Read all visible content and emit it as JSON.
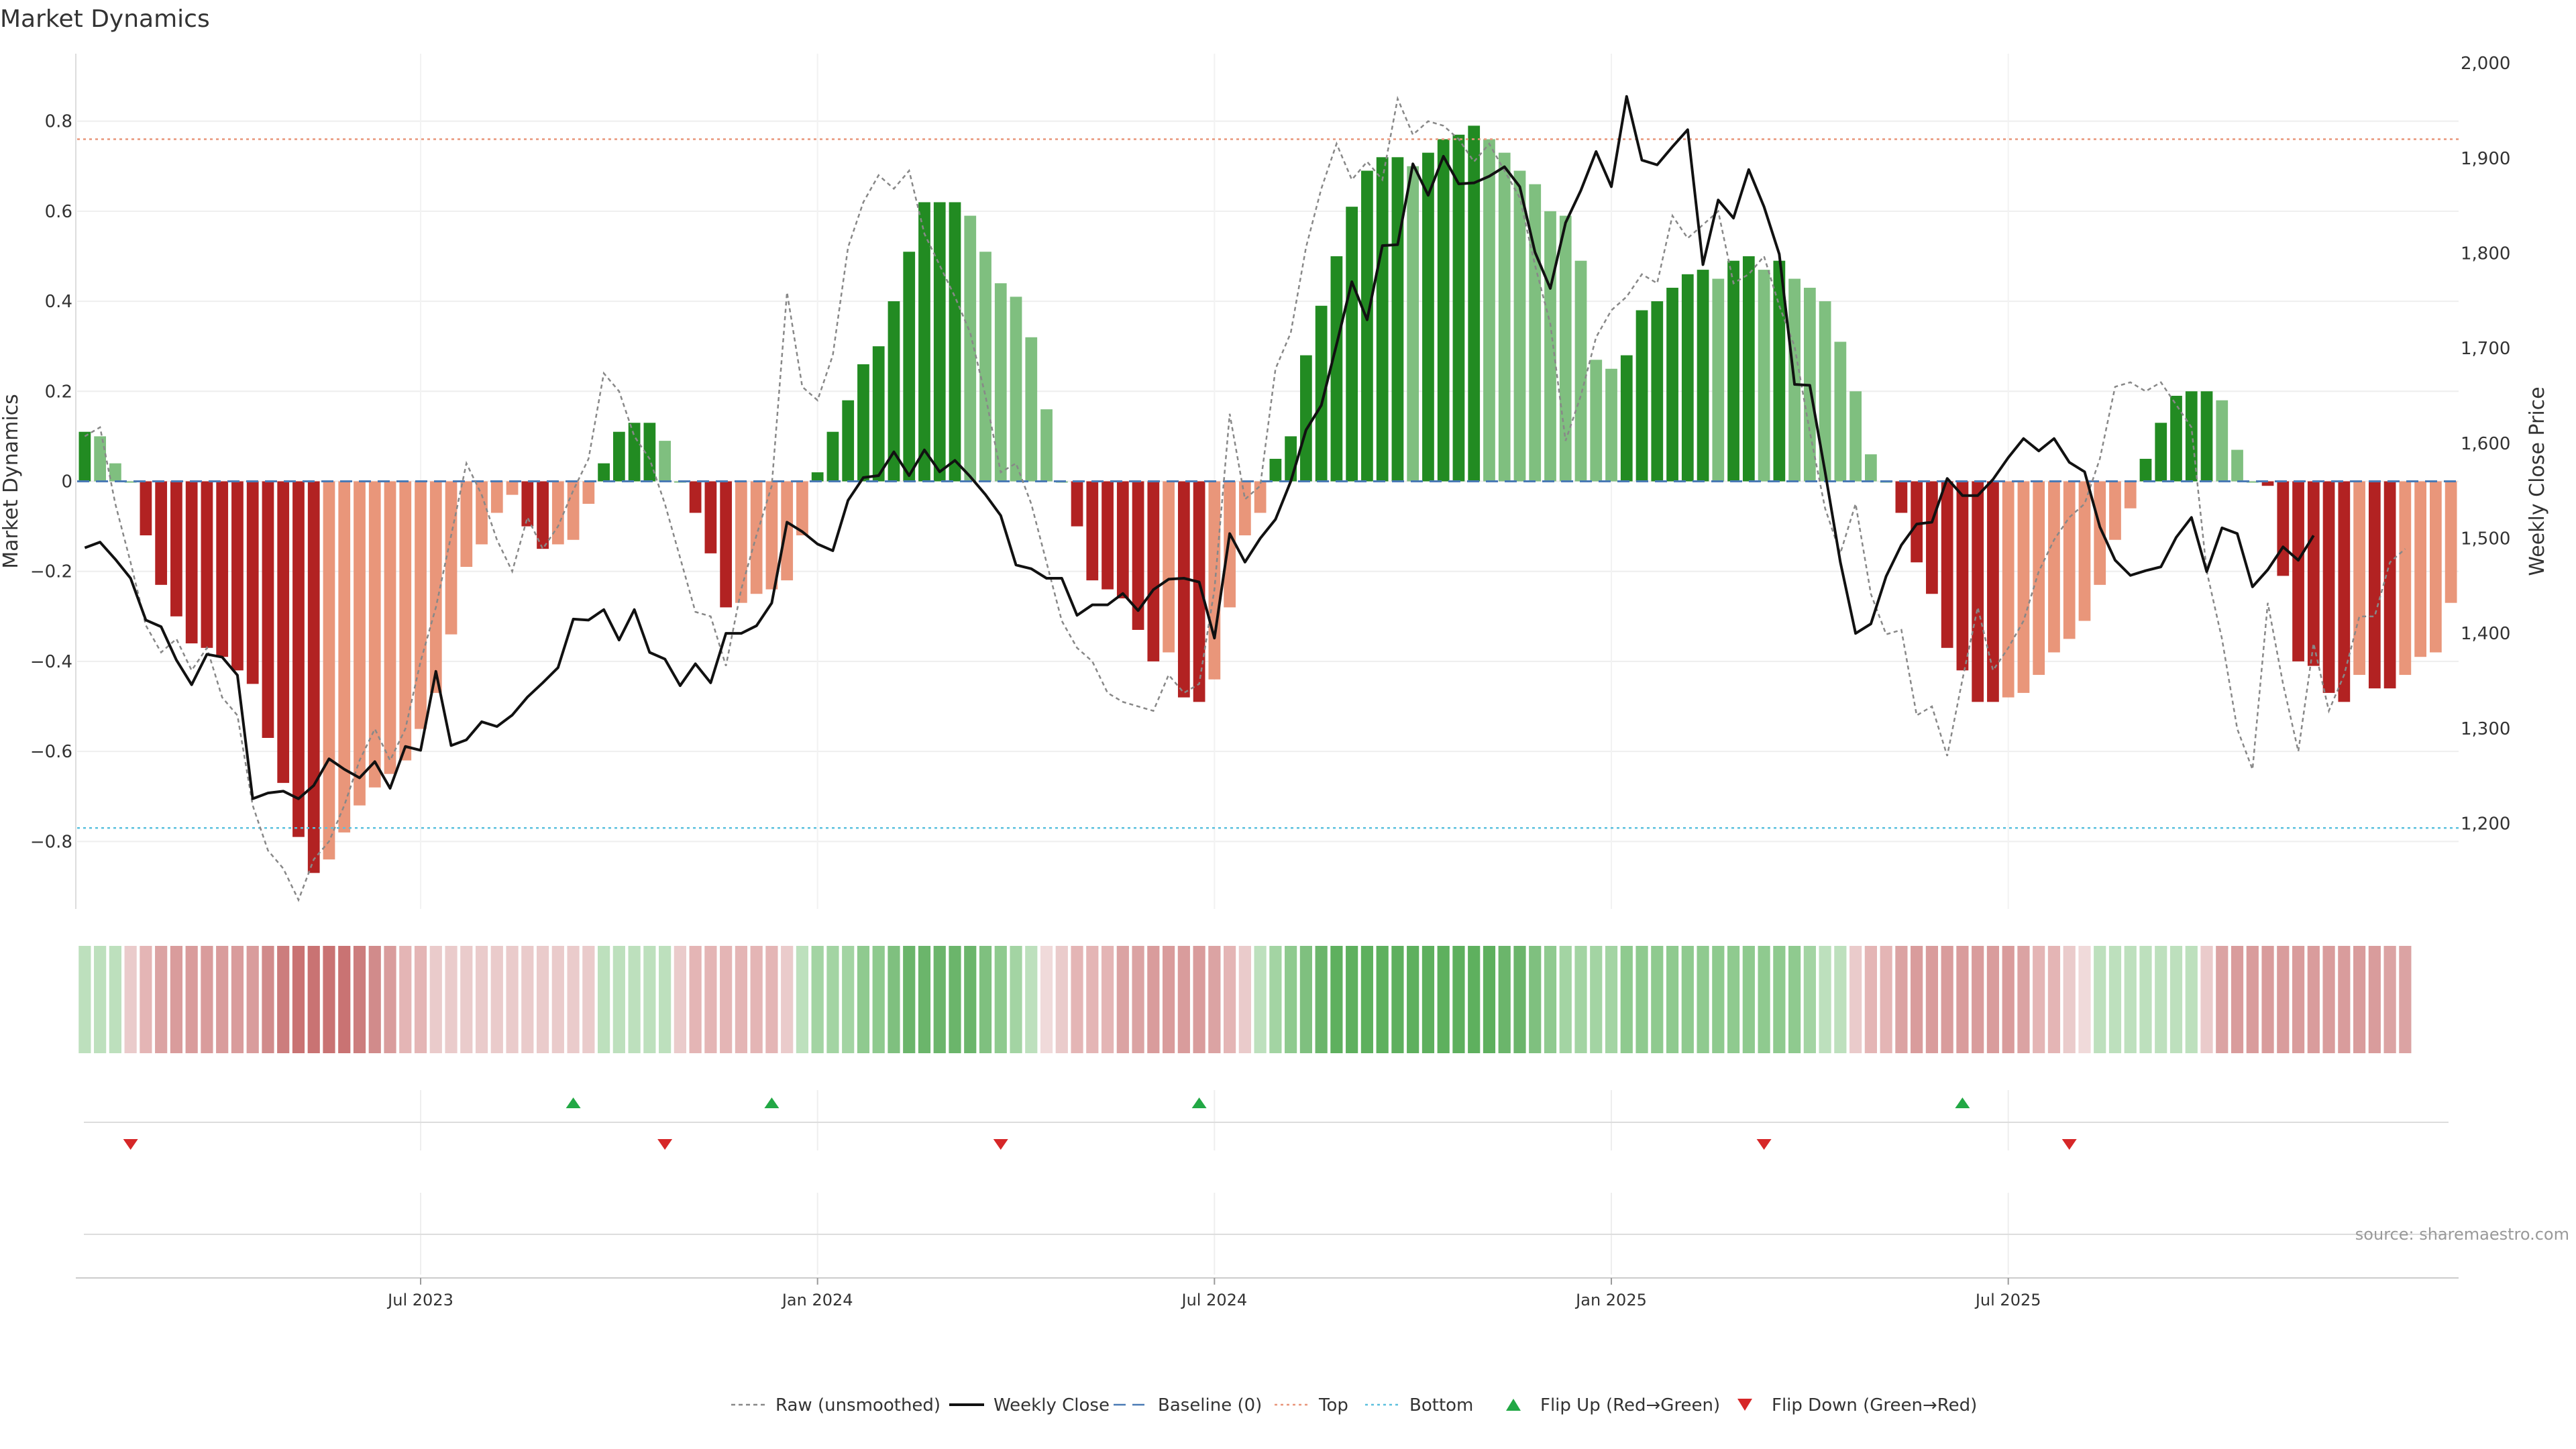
{
  "chart_data": {
    "type": "bar",
    "title": "Market Dynamics",
    "ylabel": "Market Dynamics",
    "y2label": "Weekly Close Price",
    "ylim": [
      -0.95,
      0.95
    ],
    "y2lim": [
      1110,
      2010
    ],
    "y_ticks": [
      -0.8,
      -0.6,
      -0.4,
      -0.2,
      0,
      0.2,
      0.4,
      0.6,
      0.8
    ],
    "y_tick_labels": [
      "−0.8",
      "−0.6",
      "−0.4",
      "−0.2",
      "0",
      "0.2",
      "0.4",
      "0.6",
      "0.8"
    ],
    "y2_ticks": [
      1200,
      1300,
      1400,
      1500,
      1600,
      1700,
      1800,
      1900,
      2000
    ],
    "y2_tick_labels": [
      "1,200",
      "1,300",
      "1,400",
      "1,500",
      "1,600",
      "1,700",
      "1,800",
      "1,900",
      "2,000"
    ],
    "x_ticks": [
      {
        "week": 22,
        "label": "Jul 2023"
      },
      {
        "week": 48,
        "label": "Jan 2024"
      },
      {
        "week": 74,
        "label": "Jul 2024"
      },
      {
        "week": 100,
        "label": "Jan 2025"
      },
      {
        "week": 126,
        "label": "Jul 2025"
      }
    ],
    "top_line": 0.76,
    "bottom_line": -0.77,
    "baseline": 0,
    "source_text": "source: sharemaestro.com",
    "colors": {
      "strong_up": "#228b22",
      "weak_up": "#7fbf7f",
      "strong_down": "#b22222",
      "weak_down": "#e9967a",
      "close": "#111111",
      "raw": "#888888",
      "top": "#e9967a",
      "bottom": "#5bc0de",
      "baseline": "#4a7ab5",
      "flip_up": "#22a845",
      "flip_down": "#d62728"
    },
    "momentum": [
      0.11,
      0.1,
      0.04,
      0,
      -0.12,
      -0.23,
      -0.3,
      -0.36,
      -0.37,
      -0.39,
      -0.42,
      -0.45,
      -0.57,
      -0.67,
      -0.79,
      -0.87,
      -0.84,
      -0.78,
      -0.72,
      -0.68,
      -0.65,
      -0.62,
      -0.55,
      -0.47,
      -0.34,
      -0.19,
      -0.14,
      -0.07,
      -0.03,
      -0.1,
      -0.15,
      -0.14,
      -0.13,
      -0.05,
      0.04,
      0.11,
      0.13,
      0.13,
      0.09,
      0,
      -0.07,
      -0.16,
      -0.28,
      -0.27,
      -0.25,
      -0.24,
      -0.22,
      -0.12,
      0.02,
      0.11,
      0.18,
      0.26,
      0.3,
      0.4,
      0.51,
      0.62,
      0.62,
      0.62,
      0.59,
      0.51,
      0.44,
      0.41,
      0.32,
      0.16,
      0,
      -0.1,
      -0.22,
      -0.24,
      -0.26,
      -0.33,
      -0.4,
      -0.38,
      -0.48,
      -0.49,
      -0.44,
      -0.28,
      -0.12,
      -0.07,
      0.05,
      0.1,
      0.28,
      0.39,
      0.5,
      0.61,
      0.69,
      0.72,
      0.72,
      0.7,
      0.73,
      0.76,
      0.77,
      0.79,
      0.76,
      0.73,
      0.69,
      0.66,
      0.6,
      0.59,
      0.49,
      0.27,
      0.25,
      0.28,
      0.38,
      0.4,
      0.43,
      0.46,
      0.47,
      0.45,
      0.49,
      0.5,
      0.47,
      0.49,
      0.45,
      0.43,
      0.4,
      0.31,
      0.2,
      0.06,
      0,
      -0.07,
      -0.18,
      -0.25,
      -0.37,
      -0.42,
      -0.49,
      -0.49,
      -0.48,
      -0.47,
      -0.43,
      -0.38,
      -0.35,
      -0.31,
      -0.23,
      -0.13,
      -0.06,
      0.05,
      0.13,
      0.19,
      0.2,
      0.2,
      0.18,
      0.07,
      0,
      -0.01,
      -0.21,
      -0.4,
      -0.41,
      -0.47,
      -0.49,
      -0.43,
      -0.46,
      -0.46,
      -0.43,
      -0.39,
      -0.38,
      -0.27
    ],
    "raw": [
      0.1,
      0.12,
      -0.05,
      -0.18,
      -0.32,
      -0.38,
      -0.35,
      -0.42,
      -0.37,
      -0.48,
      -0.52,
      -0.72,
      -0.82,
      -0.86,
      -0.93,
      -0.84,
      -0.8,
      -0.72,
      -0.62,
      -0.55,
      -0.62,
      -0.55,
      -0.4,
      -0.28,
      -0.12,
      0.04,
      -0.03,
      -0.13,
      -0.2,
      -0.08,
      -0.15,
      -0.1,
      -0.02,
      0.05,
      0.24,
      0.2,
      0.1,
      0.05,
      -0.05,
      -0.17,
      -0.29,
      -0.3,
      -0.41,
      -0.24,
      -0.12,
      -0.01,
      0.42,
      0.21,
      0.18,
      0.28,
      0.52,
      0.62,
      0.68,
      0.65,
      0.69,
      0.55,
      0.48,
      0.41,
      0.33,
      0.19,
      0.02,
      0.04,
      -0.05,
      -0.18,
      -0.31,
      -0.37,
      -0.4,
      -0.47,
      -0.49,
      -0.5,
      -0.51,
      -0.43,
      -0.47,
      -0.45,
      -0.24,
      0.15,
      -0.04,
      -0.01,
      0.25,
      0.33,
      0.52,
      0.65,
      0.75,
      0.67,
      0.71,
      0.67,
      0.85,
      0.77,
      0.8,
      0.79,
      0.76,
      0.71,
      0.75,
      0.69,
      0.63,
      0.48,
      0.35,
      0.09,
      0.19,
      0.32,
      0.38,
      0.41,
      0.46,
      0.44,
      0.59,
      0.54,
      0.57,
      0.6,
      0.44,
      0.46,
      0.5,
      0.39,
      0.3,
      0.11,
      -0.06,
      -0.16,
      -0.05,
      -0.25,
      -0.34,
      -0.33,
      -0.52,
      -0.5,
      -0.61,
      -0.44,
      -0.28,
      -0.42,
      -0.37,
      -0.31,
      -0.2,
      -0.13,
      -0.08,
      -0.05,
      0.05,
      0.21,
      0.22,
      0.2,
      0.22,
      0.17,
      0.12,
      -0.2,
      -0.35,
      -0.55,
      -0.64,
      -0.27,
      -0.45,
      -0.6,
      -0.36,
      -0.51,
      -0.43,
      -0.3,
      -0.3,
      -0.18,
      -0.15
    ],
    "close": [
      1490,
      1496,
      1478,
      1458,
      1414,
      1407,
      1372,
      1346,
      1378,
      1375,
      1356,
      1226,
      1232,
      1234,
      1226,
      1240,
      1268,
      1257,
      1248,
      1265,
      1237,
      1281,
      1277,
      1360,
      1282,
      1288,
      1307,
      1302,
      1314,
      1333,
      1348,
      1364,
      1415,
      1414,
      1425,
      1393,
      1425,
      1380,
      1373,
      1345,
      1368,
      1348,
      1400,
      1400,
      1408,
      1432,
      1517,
      1507,
      1494,
      1487,
      1540,
      1564,
      1566,
      1591,
      1566,
      1593,
      1570,
      1582,
      1565,
      1546,
      1524,
      1472,
      1468,
      1458,
      1458,
      1419,
      1430,
      1430,
      1442,
      1424,
      1446,
      1457,
      1458,
      1454,
      1395,
      1505,
      1475,
      1500,
      1520,
      1560,
      1614,
      1640,
      1704,
      1770,
      1730,
      1808,
      1809,
      1894,
      1861,
      1902,
      1873,
      1874,
      1881,
      1891,
      1870,
      1801,
      1763,
      1832,
      1866,
      1907,
      1870,
      1965,
      1898,
      1893,
      1912,
      1930,
      1788,
      1856,
      1837,
      1888,
      1849,
      1799,
      1662,
      1661,
      1570,
      1475,
      1400,
      1410,
      1460,
      1493,
      1515,
      1517,
      1563,
      1545,
      1545,
      1562,
      1585,
      1605,
      1592,
      1605,
      1580,
      1570,
      1512,
      1477,
      1461,
      1466,
      1470,
      1501,
      1522,
      1465,
      1511,
      1505,
      1449,
      1467,
      1491,
      1477,
      1503
    ],
    "state_colors": [
      "#bde0bd",
      "#bde0bd",
      "#bde0bd",
      "#eacbcb",
      "#e4b5b5",
      "#dba3a3",
      "#d99c9c",
      "#d99c9c",
      "#d99c9c",
      "#d99c9c",
      "#d99c9c",
      "#d99c9c",
      "#d18b8b",
      "#cc7d7d",
      "#c97373",
      "#c97373",
      "#c97373",
      "#c97373",
      "#cc7d7d",
      "#d18b8b",
      "#d99c9c",
      "#e4b5b5",
      "#e4b5b5",
      "#eacbcb",
      "#eacbcb",
      "#eacbcb",
      "#eacbcb",
      "#eacbcb",
      "#eacbcb",
      "#eacbcb",
      "#eacbcb",
      "#eacbcb",
      "#eacbcb",
      "#eacbcb",
      "#bde0bd",
      "#bde0bd",
      "#bde0bd",
      "#bde0bd",
      "#bde0bd",
      "#eacbcb",
      "#e4b5b5",
      "#e4b5b5",
      "#e4b5b5",
      "#e4b5b5",
      "#e4b5b5",
      "#e4b5b5",
      "#eacbcb",
      "#bde0bd",
      "#a3d4a3",
      "#a3d4a3",
      "#a3d4a3",
      "#8fca8f",
      "#8fca8f",
      "#7fc07f",
      "#6bb56b",
      "#6bb56b",
      "#6bb56b",
      "#6bb56b",
      "#6bb56b",
      "#7fc07f",
      "#8fca8f",
      "#a3d4a3",
      "#bde0bd",
      "#f0dada",
      "#eacbcb",
      "#e4b5b5",
      "#e4b5b5",
      "#e4b5b5",
      "#dba3a3",
      "#dba3a3",
      "#d99c9c",
      "#d99c9c",
      "#d99c9c",
      "#d99c9c",
      "#dba3a3",
      "#e4b5b5",
      "#eacbcb",
      "#bde0bd",
      "#a3d4a3",
      "#8fca8f",
      "#7fc07f",
      "#6bb56b",
      "#5eb05e",
      "#5eb05e",
      "#5eb05e",
      "#5eb05e",
      "#5eb05e",
      "#5eb05e",
      "#5eb05e",
      "#5eb05e",
      "#5eb05e",
      "#5eb05e",
      "#5eb05e",
      "#6bb56b",
      "#6bb56b",
      "#7fc07f",
      "#8fca8f",
      "#a3d4a3",
      "#a3d4a3",
      "#a3d4a3",
      "#a3d4a3",
      "#8fca8f",
      "#8fca8f",
      "#8fca8f",
      "#8fca8f",
      "#8fca8f",
      "#8fca8f",
      "#8fca8f",
      "#8fca8f",
      "#8fca8f",
      "#8fca8f",
      "#8fca8f",
      "#8fca8f",
      "#a3d4a3",
      "#bde0bd",
      "#bde0bd",
      "#eacbcb",
      "#e4b5b5",
      "#e4b5b5",
      "#dba3a3",
      "#d99c9c",
      "#d99c9c",
      "#d99c9c",
      "#d99c9c",
      "#d99c9c",
      "#d99c9c",
      "#d99c9c",
      "#dba3a3",
      "#e4b5b5",
      "#e4b5b5",
      "#eacbcb",
      "#f0dada",
      "#bde0bd",
      "#bde0bd",
      "#bde0bd",
      "#bde0bd",
      "#bde0bd",
      "#bde0bd",
      "#bde0bd",
      "#eacbcb",
      "#dba3a3",
      "#d99c9c",
      "#d99c9c",
      "#d99c9c",
      "#d99c9c",
      "#d99c9c",
      "#d99c9c",
      "#d99c9c",
      "#d99c9c",
      "#d99c9c",
      "#d99c9c",
      "#dba3a3",
      "#dba3a3"
    ],
    "flip_up_weeks": [
      32,
      45,
      73,
      123
    ],
    "flip_down_weeks": [
      3,
      38,
      60,
      110,
      130
    ],
    "legend": [
      {
        "label": "Raw (unsmoothed)",
        "style": "raw"
      },
      {
        "label": "Weekly Close",
        "style": "close"
      },
      {
        "label": "Baseline (0)",
        "style": "baseline"
      },
      {
        "label": "Top",
        "style": "top"
      },
      {
        "label": "Bottom",
        "style": "bottom"
      },
      {
        "label": "Flip Up (Red→Green)",
        "style": "flip_up"
      },
      {
        "label": "Flip Down (Green→Red)",
        "style": "flip_down"
      }
    ]
  }
}
